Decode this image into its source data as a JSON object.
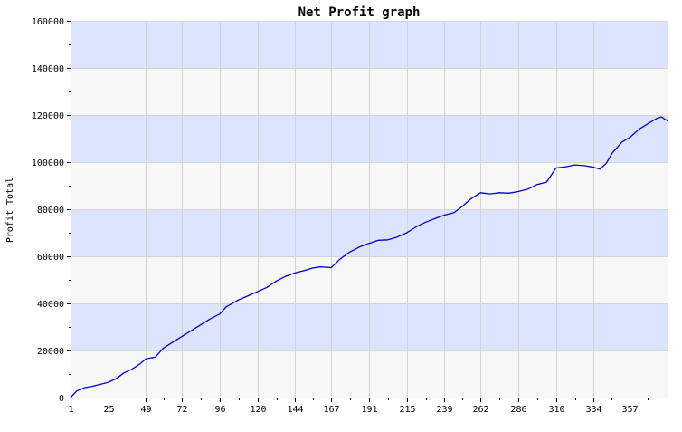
{
  "chart_data": {
    "type": "line",
    "title": "Net Profit graph",
    "xlabel": "",
    "ylabel": "Profit Total",
    "xlim": [
      1,
      381
    ],
    "ylim": [
      0,
      160000
    ],
    "x_ticks": [
      1,
      25,
      49,
      72,
      96,
      120,
      144,
      167,
      191,
      215,
      239,
      262,
      286,
      310,
      334,
      357
    ],
    "y_ticks": [
      0,
      20000,
      40000,
      60000,
      80000,
      100000,
      120000,
      140000,
      160000
    ],
    "band_colors": [
      "#f7f7f7",
      "#dde4fd"
    ],
    "grid": true,
    "series": [
      {
        "color": "#0000cc",
        "points": [
          [
            1,
            0
          ],
          [
            5,
            2800
          ],
          [
            10,
            4200
          ],
          [
            15,
            4800
          ],
          [
            20,
            5600
          ],
          [
            25,
            6500
          ],
          [
            30,
            8000
          ],
          [
            35,
            10500
          ],
          [
            40,
            12000
          ],
          [
            45,
            14200
          ],
          [
            49,
            16500
          ],
          [
            55,
            17200
          ],
          [
            60,
            21000
          ],
          [
            66,
            23500
          ],
          [
            72,
            26000
          ],
          [
            78,
            28500
          ],
          [
            84,
            31000
          ],
          [
            90,
            33500
          ],
          [
            96,
            35500
          ],
          [
            100,
            38500
          ],
          [
            108,
            41500
          ],
          [
            115,
            43500
          ],
          [
            120,
            45000
          ],
          [
            126,
            46800
          ],
          [
            132,
            49500
          ],
          [
            138,
            51500
          ],
          [
            144,
            53000
          ],
          [
            150,
            54000
          ],
          [
            155,
            55000
          ],
          [
            160,
            55500
          ],
          [
            167,
            55200
          ],
          [
            172,
            58500
          ],
          [
            178,
            61500
          ],
          [
            185,
            64000
          ],
          [
            191,
            65500
          ],
          [
            197,
            66800
          ],
          [
            203,
            67000
          ],
          [
            209,
            68200
          ],
          [
            215,
            70000
          ],
          [
            221,
            72500
          ],
          [
            227,
            74500
          ],
          [
            233,
            76000
          ],
          [
            239,
            77500
          ],
          [
            245,
            78500
          ],
          [
            250,
            81000
          ],
          [
            256,
            84500
          ],
          [
            262,
            87000
          ],
          [
            268,
            86500
          ],
          [
            274,
            87000
          ],
          [
            280,
            86800
          ],
          [
            286,
            87500
          ],
          [
            292,
            88500
          ],
          [
            298,
            90500
          ],
          [
            304,
            91500
          ],
          [
            310,
            97500
          ],
          [
            316,
            98000
          ],
          [
            322,
            98800
          ],
          [
            328,
            98500
          ],
          [
            334,
            97800
          ],
          [
            338,
            97000
          ],
          [
            342,
            99500
          ],
          [
            346,
            104000
          ],
          [
            352,
            108500
          ],
          [
            357,
            110500
          ],
          [
            363,
            114000
          ],
          [
            369,
            116500
          ],
          [
            374,
            118500
          ],
          [
            377,
            119200
          ],
          [
            381,
            117500
          ]
        ]
      }
    ]
  }
}
